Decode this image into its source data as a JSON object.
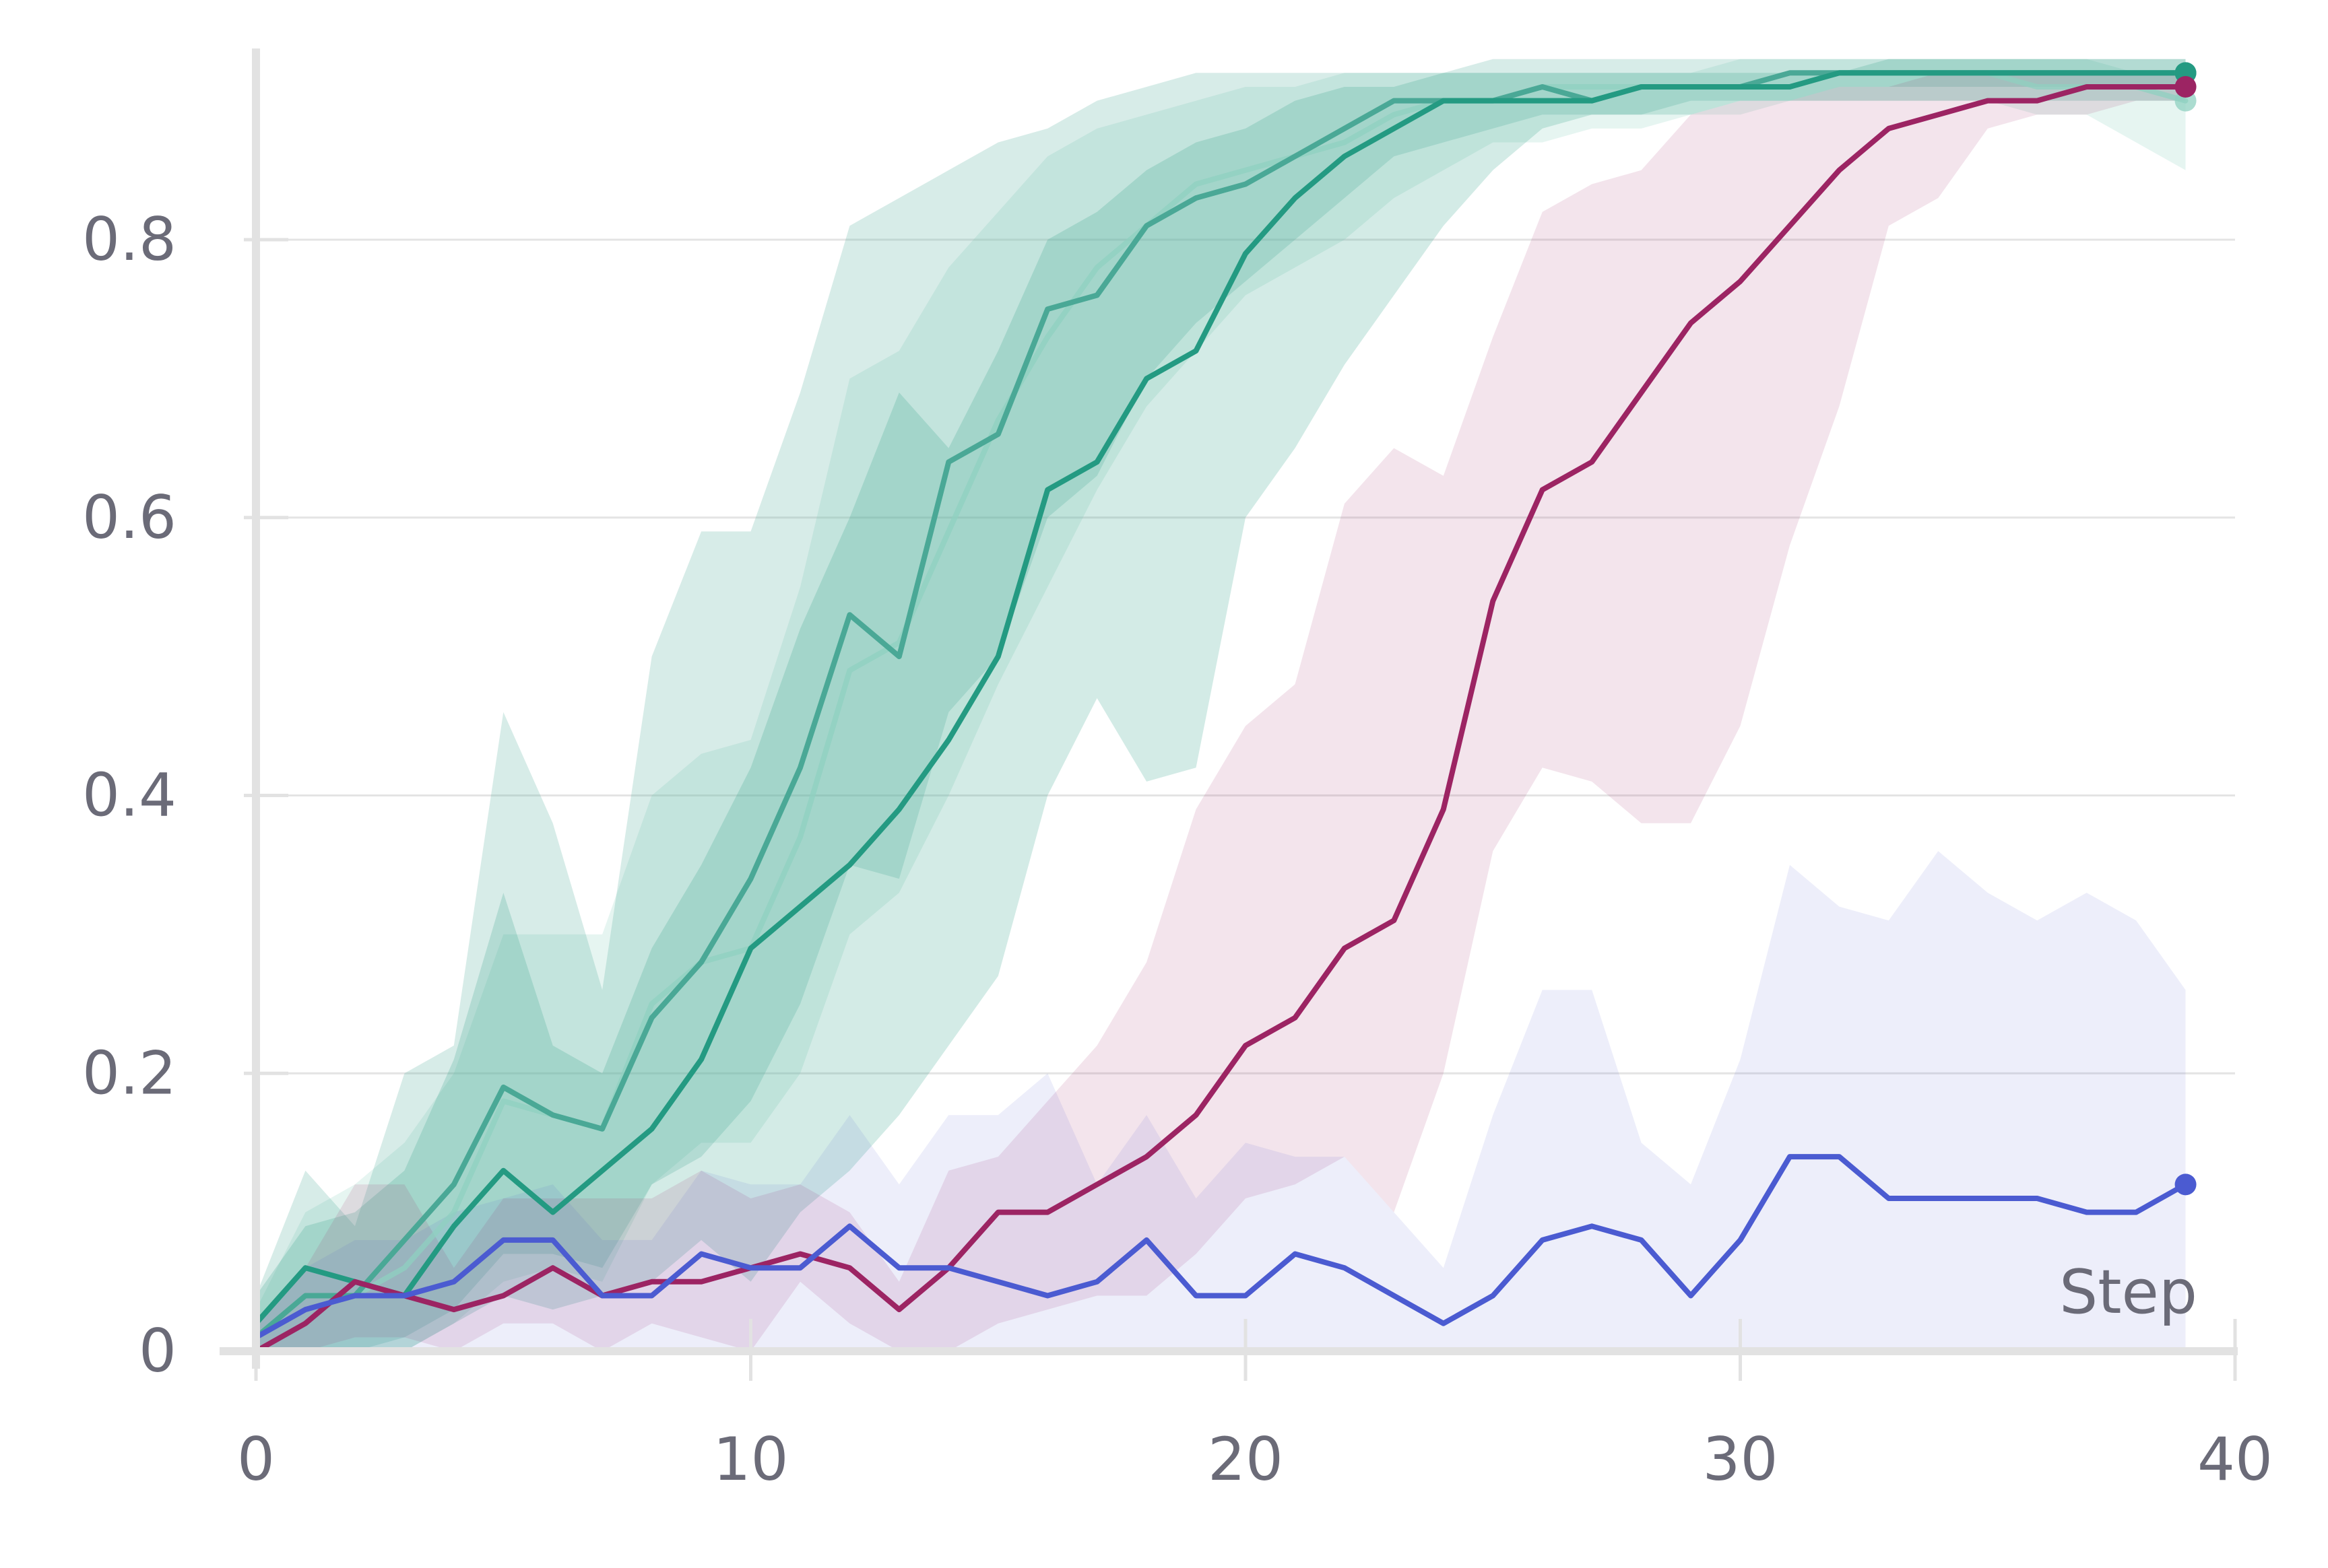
{
  "chart_data": {
    "type": "line",
    "xlabel": "Step",
    "ylabel": "",
    "xlim": [
      0,
      40
    ],
    "ylim": [
      0,
      0.92
    ],
    "grid": true,
    "x_ticks": [
      {
        "value": 0,
        "label": "0"
      },
      {
        "value": 10,
        "label": "10"
      },
      {
        "value": 20,
        "label": "20"
      },
      {
        "value": 30,
        "label": "30"
      },
      {
        "value": 40,
        "label": "40"
      }
    ],
    "y_ticks": [
      {
        "value": 0,
        "label": "0"
      },
      {
        "value": 0.2,
        "label": "0.2"
      },
      {
        "value": 0.4,
        "label": "0.4"
      },
      {
        "value": 0.6,
        "label": "0.6"
      },
      {
        "value": 0.8,
        "label": "0.8"
      }
    ],
    "x": [
      0,
      1,
      2,
      3,
      4,
      5,
      6,
      7,
      8,
      9,
      10,
      11,
      12,
      13,
      14,
      15,
      16,
      17,
      18,
      19,
      20,
      21,
      22,
      23,
      24,
      25,
      26,
      27,
      28,
      29,
      30,
      31,
      32,
      33,
      34,
      35,
      36,
      37,
      38,
      39
    ],
    "series": [
      {
        "color": "#8fd0c0",
        "band_opacity": 0.22,
        "line_opacity": 0.75,
        "values": [
          0.01,
          0.04,
          0.04,
          0.06,
          0.1,
          0.18,
          0.17,
          0.16,
          0.25,
          0.28,
          0.29,
          0.37,
          0.49,
          0.51,
          0.59,
          0.67,
          0.73,
          0.78,
          0.81,
          0.84,
          0.85,
          0.86,
          0.87,
          0.89,
          0.9,
          0.9,
          0.91,
          0.91,
          0.91,
          0.91,
          0.91,
          0.91,
          0.92,
          0.92,
          0.92,
          0.92,
          0.91,
          0.91,
          0.91,
          0.9
        ],
        "lower": [
          0.0,
          0.0,
          0.0,
          0.0,
          0.02,
          0.05,
          0.06,
          0.05,
          0.12,
          0.15,
          0.15,
          0.2,
          0.3,
          0.33,
          0.4,
          0.48,
          0.55,
          0.62,
          0.68,
          0.72,
          0.76,
          0.78,
          0.8,
          0.83,
          0.85,
          0.87,
          0.87,
          0.88,
          0.88,
          0.89,
          0.89,
          0.9,
          0.9,
          0.9,
          0.9,
          0.9,
          0.89,
          0.89,
          0.87,
          0.85
        ],
        "upper": [
          0.03,
          0.1,
          0.12,
          0.15,
          0.2,
          0.3,
          0.3,
          0.3,
          0.4,
          0.43,
          0.44,
          0.55,
          0.7,
          0.72,
          0.78,
          0.82,
          0.86,
          0.88,
          0.89,
          0.9,
          0.91,
          0.91,
          0.92,
          0.92,
          0.92,
          0.92,
          0.92,
          0.92,
          0.92,
          0.92,
          0.93,
          0.93,
          0.93,
          0.93,
          0.93,
          0.93,
          0.93,
          0.93,
          0.92,
          0.92
        ]
      },
      {
        "color": "#4aa896",
        "band_opacity": 0.22,
        "line_opacity": 1,
        "values": [
          0.01,
          0.04,
          0.04,
          0.08,
          0.12,
          0.19,
          0.17,
          0.16,
          0.24,
          0.28,
          0.34,
          0.42,
          0.53,
          0.5,
          0.64,
          0.66,
          0.75,
          0.76,
          0.81,
          0.83,
          0.84,
          0.86,
          0.88,
          0.9,
          0.9,
          0.9,
          0.91,
          0.9,
          0.91,
          0.91,
          0.91,
          0.92,
          0.92,
          0.92,
          0.92,
          0.92,
          0.92,
          0.92,
          0.92,
          0.92
        ],
        "lower": [
          0.0,
          0.0,
          0.0,
          0.01,
          0.03,
          0.07,
          0.07,
          0.06,
          0.12,
          0.14,
          0.18,
          0.25,
          0.35,
          0.34,
          0.46,
          0.5,
          0.6,
          0.63,
          0.7,
          0.74,
          0.77,
          0.8,
          0.83,
          0.86,
          0.87,
          0.88,
          0.89,
          0.89,
          0.89,
          0.9,
          0.9,
          0.9,
          0.91,
          0.91,
          0.91,
          0.91,
          0.91,
          0.91,
          0.91,
          0.91
        ],
        "upper": [
          0.04,
          0.13,
          0.09,
          0.2,
          0.22,
          0.46,
          0.38,
          0.26,
          0.5,
          0.59,
          0.59,
          0.69,
          0.81,
          0.83,
          0.85,
          0.87,
          0.88,
          0.9,
          0.91,
          0.92,
          0.92,
          0.92,
          0.92,
          0.92,
          0.92,
          0.93,
          0.93,
          0.93,
          0.93,
          0.93,
          0.93,
          0.93,
          0.93,
          0.93,
          0.93,
          0.93,
          0.93,
          0.93,
          0.93,
          0.93
        ]
      },
      {
        "color": "#249a82",
        "band_opacity": 0.2,
        "line_opacity": 1,
        "values": [
          0.02,
          0.06,
          0.05,
          0.04,
          0.09,
          0.13,
          0.1,
          0.13,
          0.16,
          0.21,
          0.29,
          0.32,
          0.35,
          0.39,
          0.44,
          0.5,
          0.62,
          0.64,
          0.7,
          0.72,
          0.79,
          0.83,
          0.86,
          0.88,
          0.9,
          0.9,
          0.9,
          0.9,
          0.91,
          0.91,
          0.91,
          0.91,
          0.92,
          0.92,
          0.92,
          0.92,
          0.92,
          0.92,
          0.92,
          0.92
        ],
        "lower": [
          0.0,
          0.0,
          0.0,
          0.0,
          0.02,
          0.04,
          0.03,
          0.04,
          0.05,
          0.08,
          0.05,
          0.1,
          0.13,
          0.17,
          0.22,
          0.27,
          0.4,
          0.47,
          0.41,
          0.42,
          0.6,
          0.65,
          0.71,
          0.76,
          0.81,
          0.85,
          0.88,
          0.89,
          0.89,
          0.89,
          0.9,
          0.9,
          0.9,
          0.9,
          0.9,
          0.9,
          0.9,
          0.9,
          0.9,
          0.9
        ],
        "upper": [
          0.04,
          0.09,
          0.1,
          0.13,
          0.21,
          0.33,
          0.22,
          0.2,
          0.29,
          0.35,
          0.42,
          0.52,
          0.6,
          0.69,
          0.65,
          0.72,
          0.8,
          0.82,
          0.85,
          0.87,
          0.88,
          0.9,
          0.91,
          0.91,
          0.92,
          0.92,
          0.92,
          0.92,
          0.92,
          0.92,
          0.92,
          0.92,
          0.92,
          0.93,
          0.93,
          0.93,
          0.93,
          0.93,
          0.93,
          0.93
        ]
      },
      {
        "color": "#9c2463",
        "band_opacity": 0.12,
        "line_opacity": 1,
        "values": [
          0.0,
          0.02,
          0.05,
          0.04,
          0.03,
          0.04,
          0.06,
          0.04,
          0.05,
          0.05,
          0.06,
          0.07,
          0.06,
          0.03,
          0.06,
          0.1,
          0.1,
          0.12,
          0.14,
          0.17,
          0.22,
          0.24,
          0.29,
          0.31,
          0.39,
          0.54,
          0.62,
          0.64,
          0.69,
          0.74,
          0.77,
          0.81,
          0.85,
          0.88,
          0.89,
          0.9,
          0.9,
          0.91,
          0.91,
          0.91
        ],
        "lower": [
          0.0,
          0.0,
          0.01,
          0.01,
          0.0,
          0.02,
          0.02,
          0.0,
          0.02,
          0.01,
          0.0,
          0.05,
          0.02,
          0.0,
          0.0,
          0.02,
          0.03,
          0.04,
          0.04,
          0.07,
          0.11,
          0.12,
          0.14,
          0.1,
          0.2,
          0.36,
          0.42,
          0.41,
          0.38,
          0.38,
          0.45,
          0.58,
          0.68,
          0.81,
          0.83,
          0.88,
          0.89,
          0.89,
          0.9,
          0.9
        ],
        "upper": [
          0.02,
          0.06,
          0.12,
          0.12,
          0.06,
          0.11,
          0.11,
          0.11,
          0.11,
          0.13,
          0.11,
          0.12,
          0.1,
          0.05,
          0.13,
          0.14,
          0.18,
          0.22,
          0.28,
          0.39,
          0.45,
          0.48,
          0.61,
          0.65,
          0.63,
          0.73,
          0.82,
          0.84,
          0.85,
          0.89,
          0.9,
          0.9,
          0.91,
          0.91,
          0.92,
          0.92,
          0.92,
          0.92,
          0.92,
          0.92
        ]
      },
      {
        "color": "#4b5bd1",
        "band_opacity": 0.1,
        "line_opacity": 1,
        "values": [
          0.01,
          0.03,
          0.04,
          0.04,
          0.05,
          0.08,
          0.08,
          0.04,
          0.04,
          0.07,
          0.06,
          0.06,
          0.09,
          0.06,
          0.06,
          0.05,
          0.04,
          0.05,
          0.08,
          0.04,
          0.04,
          0.07,
          0.06,
          0.04,
          0.02,
          0.04,
          0.08,
          0.09,
          0.08,
          0.04,
          0.08,
          0.14,
          0.14,
          0.11,
          0.11,
          0.11,
          0.11,
          0.1,
          0.1,
          0.12
        ],
        "lower": [
          0.0,
          0.0,
          0.0,
          0.0,
          0.0,
          0.0,
          0.0,
          0.0,
          0.0,
          0.0,
          0.0,
          0.0,
          0.0,
          0.0,
          0.0,
          0.0,
          0.0,
          0.0,
          0.0,
          0.0,
          0.0,
          0.0,
          0.0,
          0.0,
          0.0,
          0.0,
          0.0,
          0.0,
          0.0,
          0.0,
          0.0,
          0.0,
          0.0,
          0.0,
          0.0,
          0.0,
          0.0,
          0.0,
          0.0,
          0.0
        ],
        "upper": [
          0.02,
          0.06,
          0.08,
          0.08,
          0.1,
          0.11,
          0.12,
          0.08,
          0.08,
          0.13,
          0.12,
          0.12,
          0.17,
          0.12,
          0.17,
          0.17,
          0.2,
          0.12,
          0.17,
          0.11,
          0.15,
          0.14,
          0.14,
          0.1,
          0.06,
          0.17,
          0.26,
          0.26,
          0.15,
          0.12,
          0.21,
          0.35,
          0.32,
          0.31,
          0.36,
          0.33,
          0.31,
          0.33,
          0.31,
          0.26
        ]
      }
    ]
  }
}
